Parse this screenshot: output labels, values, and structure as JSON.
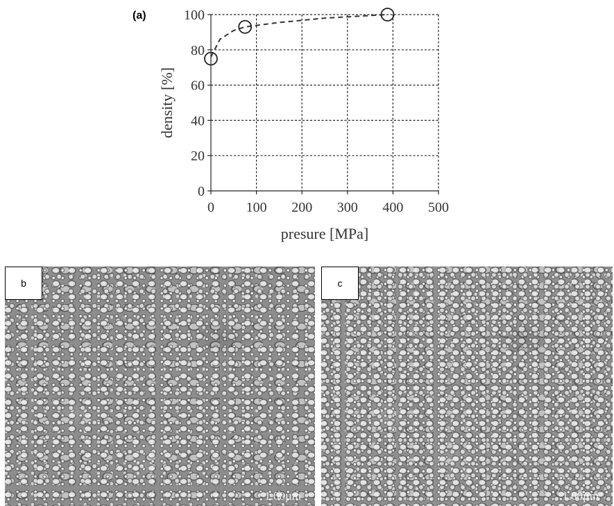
{
  "panels": {
    "a_label": "(a)",
    "b_label": "b",
    "c_label": "c"
  },
  "chart_data": {
    "type": "scatter",
    "series": [
      {
        "x": [
          0,
          75,
          388
        ],
        "y": [
          75,
          93,
          100
        ]
      }
    ],
    "fit_curve": {
      "style": "dashed",
      "x": [
        0,
        20,
        50,
        75,
        150,
        250,
        388
      ],
      "y": [
        76,
        86,
        91,
        93,
        95.5,
        98,
        100
      ]
    },
    "xlabel": "presure [MPa]",
    "ylabel": "density [%]",
    "xlim": [
      0,
      500
    ],
    "ylim": [
      0,
      100
    ],
    "xticks": [
      0,
      100,
      200,
      300,
      400,
      500
    ],
    "yticks": [
      0,
      20,
      40,
      60,
      80,
      100
    ],
    "grid": true
  },
  "micrographs": {
    "b_scale": "1.00µm",
    "c_scale": "1.00µm"
  }
}
